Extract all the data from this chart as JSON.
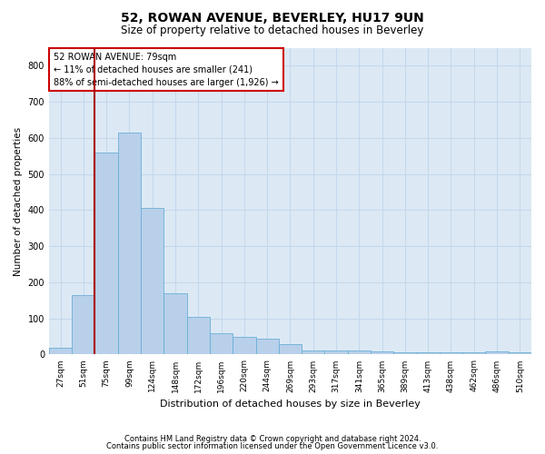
{
  "title": "52, ROWAN AVENUE, BEVERLEY, HU17 9UN",
  "subtitle": "Size of property relative to detached houses in Beverley",
  "xlabel": "Distribution of detached houses by size in Beverley",
  "ylabel": "Number of detached properties",
  "footnote1": "Contains HM Land Registry data © Crown copyright and database right 2024.",
  "footnote2": "Contains public sector information licensed under the Open Government Licence v3.0.",
  "bar_labels": [
    "27sqm",
    "51sqm",
    "75sqm",
    "99sqm",
    "124sqm",
    "148sqm",
    "172sqm",
    "196sqm",
    "220sqm",
    "244sqm",
    "269sqm",
    "293sqm",
    "317sqm",
    "341sqm",
    "365sqm",
    "389sqm",
    "413sqm",
    "438sqm",
    "462sqm",
    "486sqm",
    "510sqm"
  ],
  "bar_values": [
    18,
    165,
    560,
    615,
    405,
    170,
    105,
    60,
    50,
    45,
    30,
    10,
    10,
    10,
    8,
    5,
    5,
    5,
    5,
    8,
    5
  ],
  "bar_color": "#b8d0ea",
  "bar_edge_color": "#6baed6",
  "grid_color": "#c5d8ec",
  "bg_color": "#dce9f5",
  "vline_color": "#aa0000",
  "annotation_text": "52 ROWAN AVENUE: 79sqm\n← 11% of detached houses are smaller (241)\n88% of semi-detached houses are larger (1,926) →",
  "annotation_box_color": "#cc0000",
  "ylim": [
    0,
    850
  ],
  "yticks": [
    0,
    100,
    200,
    300,
    400,
    500,
    600,
    700,
    800
  ],
  "vline_index": 2
}
